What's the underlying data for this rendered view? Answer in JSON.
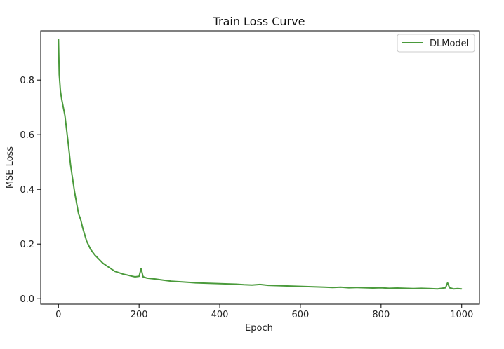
{
  "chart_data": {
    "type": "line",
    "title": "Train Loss Curve",
    "xlabel": "Epoch",
    "ylabel": "MSE Loss",
    "xlim": [
      -44,
      1044
    ],
    "ylim": [
      -0.02,
      0.98
    ],
    "xticks": [
      0,
      200,
      400,
      600,
      800,
      1000
    ],
    "yticks": [
      0.0,
      0.2,
      0.4,
      0.6,
      0.8
    ],
    "xtick_labels": [
      "0",
      "200",
      "400",
      "600",
      "800",
      "1000"
    ],
    "ytick_labels": [
      "0.0",
      "0.2",
      "0.4",
      "0.6",
      "0.8"
    ],
    "grid": false,
    "legend_position": "top-right",
    "series": [
      {
        "name": "DLModel",
        "color": "#4a9a3b",
        "x": [
          0,
          2,
          5,
          8,
          12,
          16,
          20,
          25,
          30,
          35,
          40,
          45,
          50,
          55,
          60,
          70,
          80,
          90,
          100,
          110,
          120,
          130,
          140,
          150,
          160,
          170,
          180,
          190,
          200,
          205,
          210,
          220,
          240,
          260,
          280,
          300,
          320,
          340,
          360,
          380,
          400,
          420,
          440,
          460,
          480,
          500,
          520,
          540,
          560,
          580,
          600,
          620,
          640,
          660,
          680,
          700,
          720,
          740,
          760,
          780,
          800,
          820,
          840,
          860,
          880,
          900,
          920,
          940,
          960,
          965,
          970,
          980,
          990,
          1000
        ],
        "y": [
          0.95,
          0.82,
          0.76,
          0.73,
          0.7,
          0.67,
          0.62,
          0.56,
          0.49,
          0.44,
          0.39,
          0.35,
          0.31,
          0.29,
          0.26,
          0.21,
          0.18,
          0.16,
          0.145,
          0.13,
          0.12,
          0.11,
          0.1,
          0.095,
          0.09,
          0.087,
          0.083,
          0.08,
          0.082,
          0.11,
          0.08,
          0.075,
          0.072,
          0.068,
          0.064,
          0.062,
          0.06,
          0.058,
          0.057,
          0.056,
          0.055,
          0.054,
          0.053,
          0.051,
          0.05,
          0.052,
          0.049,
          0.048,
          0.047,
          0.046,
          0.045,
          0.044,
          0.043,
          0.042,
          0.041,
          0.042,
          0.04,
          0.041,
          0.04,
          0.039,
          0.04,
          0.038,
          0.039,
          0.038,
          0.037,
          0.038,
          0.037,
          0.036,
          0.04,
          0.058,
          0.04,
          0.036,
          0.037,
          0.036
        ]
      }
    ]
  }
}
